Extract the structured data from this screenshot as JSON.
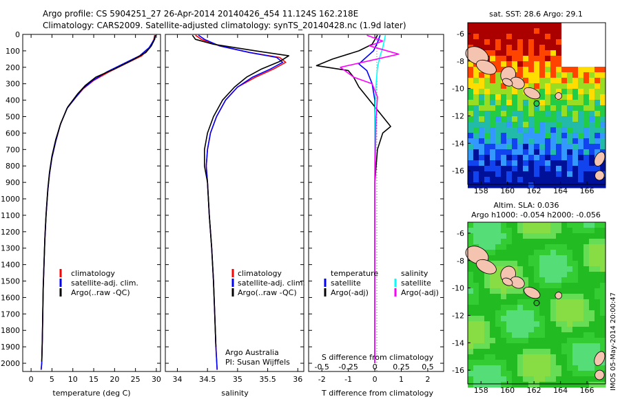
{
  "title": {
    "line1": "Argo profile: CS 5904251_27 26-Apr-2014 20140426_454 11.124S 162.218E",
    "line2": "Climatology: CARS2009. Satellite-adjusted climatology: synTS_20140428.nc (1.9d later)"
  },
  "colors": {
    "clim": "#ff0000",
    "sat": "#0000ff",
    "argo": "#000000",
    "sat_s": "#00ffff",
    "argo_s": "#ff00ff"
  },
  "chart_data": [
    {
      "type": "line",
      "xlabel": "temperature (deg C)",
      "xlim": [
        -2,
        31
      ],
      "ylim": [
        2050,
        0
      ],
      "xticks": [
        0,
        5,
        10,
        15,
        20,
        25,
        30
      ],
      "yticks": [
        0,
        100,
        200,
        300,
        400,
        500,
        600,
        700,
        800,
        900,
        1000,
        1100,
        1200,
        1300,
        1400,
        1500,
        1600,
        1700,
        1800,
        1900,
        2000
      ],
      "legend": [
        "climatology",
        "satellite-adj. clim.",
        "Argo(..raw -QC)"
      ],
      "series": [
        {
          "name": "climatology",
          "color": "clim",
          "x": [
            29.6,
            29.4,
            28.5,
            26.5,
            22.5,
            18.5,
            15.0,
            12.5,
            10.8,
            8.6,
            7.0,
            5.9,
            5.0,
            4.4,
            4.0,
            3.6,
            3.3,
            3.1,
            2.9,
            2.8,
            2.7,
            2.55,
            2.4
          ],
          "y": [
            5,
            30,
            80,
            130,
            180,
            230,
            280,
            330,
            380,
            450,
            550,
            650,
            750,
            850,
            950,
            1100,
            1250,
            1400,
            1550,
            1700,
            1850,
            2000,
            2040
          ]
        },
        {
          "name": "satellite-adj. clim.",
          "color": "sat",
          "x": [
            29.8,
            29.5,
            28.3,
            26.0,
            22.0,
            18.0,
            14.8,
            12.4,
            10.8,
            8.6,
            7.0,
            5.9,
            5.0,
            4.4,
            4.0,
            3.6,
            3.3,
            3.1,
            2.9,
            2.8,
            2.7,
            2.55,
            2.4
          ],
          "y": [
            5,
            30,
            80,
            130,
            180,
            230,
            280,
            330,
            380,
            450,
            550,
            650,
            750,
            850,
            950,
            1100,
            1250,
            1400,
            1550,
            1700,
            1850,
            2000,
            2040
          ]
        },
        {
          "name": "Argo(..raw -QC)",
          "color": "argo",
          "x": [
            29.8,
            29.6,
            28.8,
            27.5,
            24.0,
            20.0,
            15.5,
            13.0,
            11.2,
            8.8,
            7.1,
            5.9,
            5.0,
            4.4,
            4.0,
            3.6,
            3.3,
            3.1,
            2.9,
            2.8,
            2.7,
            2.55
          ],
          "y": [
            5,
            30,
            70,
            110,
            160,
            210,
            260,
            310,
            360,
            440,
            540,
            640,
            740,
            840,
            940,
            1090,
            1240,
            1390,
            1540,
            1690,
            1840,
            1990
          ]
        }
      ]
    },
    {
      "type": "line",
      "xlabel": "salinity",
      "xlim": [
        33.8,
        36.1
      ],
      "ylim": [
        2050,
        0
      ],
      "xticks": [
        34,
        34.5,
        35,
        35.5,
        36
      ],
      "legend": [
        "climatology",
        "satellite-adj. clim.",
        "Argo(..raw -QC)"
      ],
      "annotation": [
        "Argo Australia",
        "PI: Susan Wijffels"
      ],
      "series": [
        {
          "name": "climatology",
          "color": "clim",
          "x": [
            34.3,
            34.4,
            34.7,
            35.2,
            35.7,
            35.8,
            35.6,
            35.3,
            35.0,
            34.8,
            34.65,
            34.55,
            34.5,
            34.48,
            34.5,
            34.53,
            34.57,
            34.6,
            34.62,
            34.64,
            34.66
          ],
          "y": [
            5,
            30,
            70,
            110,
            140,
            170,
            210,
            260,
            320,
            400,
            500,
            600,
            700,
            800,
            900,
            1100,
            1300,
            1500,
            1700,
            1900,
            2040
          ]
        },
        {
          "name": "satellite-adj. clim.",
          "color": "sat",
          "x": [
            34.35,
            34.45,
            34.7,
            35.2,
            35.65,
            35.75,
            35.55,
            35.25,
            35.0,
            34.8,
            34.65,
            34.55,
            34.5,
            34.48,
            34.5,
            34.53,
            34.57,
            34.6,
            34.62,
            34.64,
            34.66
          ],
          "y": [
            5,
            30,
            70,
            110,
            140,
            170,
            210,
            260,
            320,
            400,
            500,
            600,
            700,
            800,
            900,
            1100,
            1300,
            1500,
            1700,
            1900,
            2040
          ]
        },
        {
          "name": "Argo(..raw -QC)",
          "color": "argo",
          "x": [
            34.25,
            34.3,
            34.6,
            35.3,
            35.85,
            35.7,
            35.4,
            35.15,
            34.95,
            34.75,
            34.6,
            34.5,
            34.45,
            34.45,
            34.5,
            34.53,
            34.57,
            34.6,
            34.62,
            34.64
          ],
          "y": [
            5,
            30,
            60,
            100,
            130,
            165,
            210,
            260,
            320,
            400,
            500,
            600,
            700,
            800,
            900,
            1100,
            1300,
            1500,
            1700,
            1900
          ]
        }
      ]
    },
    {
      "type": "line",
      "xlabel": "T difference from climatology",
      "xlabel2": "S difference from climatology",
      "xlim": [
        -2.5,
        2.6
      ],
      "ylim": [
        2050,
        0
      ],
      "xticks": [
        -2,
        -1,
        0,
        1,
        2
      ],
      "xticks2": [
        "-0.5",
        "-0.25",
        "0",
        "0.25",
        "0.5"
      ],
      "legend_headers": [
        "temperature",
        "salinity"
      ],
      "legend": [
        "satellite",
        "Argo(-adj)",
        "satellite",
        "Argo(-adj)"
      ],
      "series": [
        {
          "name": "satellite",
          "color": "sat",
          "x": [
            0.2,
            0.1,
            -0.05,
            -0.4,
            -0.6,
            -0.3,
            -0.1,
            0,
            0,
            0,
            0,
            0,
            0,
            0
          ],
          "y": [
            5,
            50,
            100,
            150,
            180,
            220,
            300,
            400,
            600,
            800,
            1000,
            1400,
            1800,
            2000
          ]
        },
        {
          "name": "Argo(-adj)",
          "color": "argo",
          "x": [
            0.1,
            -0.1,
            -0.6,
            -1.6,
            -2.2,
            -1.0,
            -0.8,
            -0.6,
            -0.3,
            0.3,
            0.6,
            0.3,
            0.1,
            0,
            0,
            0
          ],
          "y": [
            5,
            60,
            100,
            150,
            190,
            220,
            260,
            320,
            380,
            500,
            560,
            600,
            700,
            900,
            1400,
            2000
          ]
        },
        {
          "name": "satellite",
          "color": "sat_s",
          "x": [
            0.4,
            0.3,
            0.2,
            0.1,
            0.05,
            0,
            0,
            0,
            0
          ],
          "y": [
            5,
            80,
            130,
            200,
            300,
            500,
            900,
            1500,
            2000
          ]
        },
        {
          "name": "Argo(-adj)",
          "color": "argo_s",
          "x": [
            -0.3,
            0.3,
            -0.2,
            0.9,
            -1.3,
            -0.8,
            -0.1,
            0.1,
            0.05,
            0,
            0
          ],
          "y": [
            5,
            40,
            70,
            120,
            200,
            260,
            300,
            380,
            500,
            900,
            2000
          ]
        }
      ]
    }
  ],
  "map_sst": {
    "title": "sat. SST: 28.6  Argo: 29.1",
    "xticks": [
      "158",
      "160",
      "162",
      "164",
      "166"
    ],
    "yticks": [
      "-6",
      "-8",
      "-10",
      "-12",
      "-14",
      "-16"
    ],
    "xlim": [
      157,
      167.4
    ],
    "ylim": [
      -17,
      -5.2
    ],
    "float_pos": [
      162.2,
      -11.1
    ]
  },
  "map_sla": {
    "title1": "Altim. SLA: 0.036",
    "title2": "Argo h1000: -0.054 h2000: -0.056",
    "xticks": [
      "158",
      "160",
      "162",
      "164",
      "166"
    ],
    "yticks": [
      "-6",
      "-8",
      "-10",
      "-12",
      "-14",
      "-16"
    ],
    "xlim": [
      157,
      167.4
    ],
    "ylim": [
      -17,
      -5.2
    ],
    "float_pos": [
      162.2,
      -11.1
    ]
  },
  "footer": "IMOS 05-May-2014 20:00:47"
}
